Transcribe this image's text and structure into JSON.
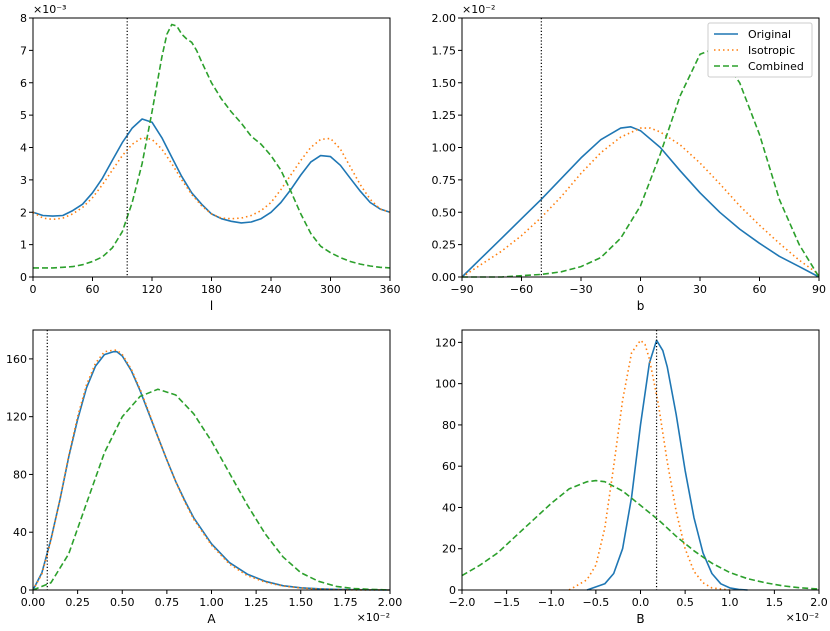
{
  "legend": [
    {
      "label": "Original",
      "color": "#1f77b4",
      "dash": "solid"
    },
    {
      "label": "Isotropic",
      "color": "#ff7f0e",
      "dash": "dotted"
    },
    {
      "label": "Combined",
      "color": "#2ca02c",
      "dash": "dashed"
    }
  ],
  "chart_data": [
    {
      "type": "line",
      "xlabel": "l",
      "ylabel": "",
      "xlim": [
        0,
        360
      ],
      "ylim": [
        0,
        8
      ],
      "xticks": [
        "0",
        "60",
        "120",
        "180",
        "240",
        "300",
        "360"
      ],
      "yticks": [
        "0",
        "1",
        "2",
        "3",
        "4",
        "5",
        "6",
        "7",
        "8"
      ],
      "y_multiplier": "×10⁻³",
      "x_multiplier": "",
      "vline": 95,
      "legend": false,
      "series": [
        {
          "name": "Original",
          "color": "#1f77b4",
          "dash": "solid",
          "x": [
            0,
            10,
            20,
            30,
            40,
            50,
            60,
            70,
            80,
            90,
            100,
            110,
            120,
            130,
            140,
            150,
            160,
            170,
            180,
            190,
            200,
            210,
            220,
            230,
            240,
            250,
            260,
            270,
            280,
            290,
            300,
            310,
            320,
            330,
            340,
            350,
            360
          ],
          "y": [
            2.0,
            1.9,
            1.88,
            1.9,
            2.05,
            2.25,
            2.6,
            3.05,
            3.6,
            4.15,
            4.6,
            4.88,
            4.78,
            4.3,
            3.7,
            3.1,
            2.6,
            2.25,
            1.95,
            1.8,
            1.72,
            1.67,
            1.7,
            1.8,
            2.0,
            2.3,
            2.7,
            3.15,
            3.55,
            3.75,
            3.72,
            3.45,
            3.05,
            2.65,
            2.3,
            2.1,
            2.0
          ]
        },
        {
          "name": "Isotropic",
          "color": "#ff7f0e",
          "dash": "dotted",
          "x": [
            0,
            10,
            20,
            30,
            40,
            50,
            60,
            70,
            80,
            90,
            100,
            110,
            120,
            130,
            140,
            150,
            160,
            170,
            180,
            190,
            200,
            210,
            220,
            230,
            240,
            250,
            260,
            270,
            280,
            290,
            300,
            310,
            320,
            330,
            340,
            350,
            360
          ],
          "y": [
            2.0,
            1.82,
            1.78,
            1.82,
            1.95,
            2.15,
            2.45,
            2.85,
            3.3,
            3.75,
            4.1,
            4.3,
            4.25,
            3.95,
            3.5,
            3.0,
            2.55,
            2.2,
            1.95,
            1.82,
            1.8,
            1.82,
            1.9,
            2.05,
            2.3,
            2.7,
            3.15,
            3.6,
            4.0,
            4.25,
            4.28,
            3.95,
            3.4,
            2.85,
            2.4,
            2.1,
            2.0
          ]
        },
        {
          "name": "Combined",
          "color": "#2ca02c",
          "dash": "dashed",
          "x": [
            0,
            10,
            20,
            30,
            40,
            50,
            60,
            70,
            80,
            90,
            100,
            110,
            120,
            130,
            135,
            140,
            145,
            150,
            155,
            160,
            165,
            170,
            180,
            190,
            200,
            210,
            220,
            230,
            240,
            250,
            260,
            270,
            280,
            290,
            300,
            310,
            320,
            330,
            340,
            350,
            360
          ],
          "y": [
            0.28,
            0.28,
            0.28,
            0.3,
            0.32,
            0.38,
            0.48,
            0.62,
            0.9,
            1.4,
            2.3,
            3.5,
            5.1,
            6.8,
            7.5,
            7.8,
            7.75,
            7.5,
            7.35,
            7.25,
            7.0,
            6.65,
            6.0,
            5.5,
            5.1,
            4.75,
            4.35,
            4.1,
            3.75,
            3.3,
            2.65,
            1.95,
            1.35,
            0.95,
            0.75,
            0.6,
            0.48,
            0.4,
            0.34,
            0.3,
            0.28
          ]
        }
      ]
    },
    {
      "type": "line",
      "xlabel": "b",
      "ylabel": "",
      "xlim": [
        -90,
        90
      ],
      "ylim": [
        0,
        2.0
      ],
      "xticks": [
        "−90",
        "−60",
        "−30",
        "0",
        "30",
        "60",
        "90"
      ],
      "yticks": [
        "0.00",
        "0.25",
        "0.50",
        "0.75",
        "1.00",
        "1.25",
        "1.50",
        "1.75",
        "2.00"
      ],
      "y_multiplier": "×10⁻²",
      "x_multiplier": "",
      "vline": -50,
      "legend": true,
      "series": [
        {
          "name": "Original",
          "color": "#1f77b4",
          "dash": "solid",
          "x": [
            -90,
            -80,
            -70,
            -60,
            -50,
            -40,
            -30,
            -20,
            -10,
            -5,
            0,
            10,
            20,
            30,
            40,
            50,
            60,
            70,
            80,
            90
          ],
          "y": [
            0.0,
            0.15,
            0.3,
            0.45,
            0.6,
            0.76,
            0.92,
            1.06,
            1.15,
            1.16,
            1.13,
            1.0,
            0.82,
            0.65,
            0.5,
            0.37,
            0.26,
            0.16,
            0.08,
            0.0
          ]
        },
        {
          "name": "Isotropic",
          "color": "#ff7f0e",
          "dash": "dotted",
          "x": [
            -90,
            -80,
            -70,
            -60,
            -50,
            -40,
            -30,
            -20,
            -10,
            0,
            5,
            10,
            20,
            30,
            40,
            50,
            60,
            70,
            80,
            90
          ],
          "y": [
            0.0,
            0.1,
            0.2,
            0.32,
            0.46,
            0.62,
            0.8,
            0.96,
            1.08,
            1.15,
            1.15,
            1.12,
            1.02,
            0.88,
            0.72,
            0.55,
            0.4,
            0.26,
            0.13,
            0.02
          ]
        },
        {
          "name": "Combined",
          "color": "#2ca02c",
          "dash": "dashed",
          "x": [
            -90,
            -70,
            -50,
            -40,
            -30,
            -20,
            -10,
            0,
            10,
            20,
            30,
            35,
            40,
            50,
            60,
            70,
            80,
            90
          ],
          "y": [
            0.0,
            0.0,
            0.02,
            0.04,
            0.08,
            0.15,
            0.3,
            0.55,
            0.95,
            1.4,
            1.72,
            1.75,
            1.72,
            1.5,
            1.1,
            0.6,
            0.25,
            0.0
          ]
        }
      ]
    },
    {
      "type": "line",
      "xlabel": "A",
      "ylabel": "",
      "xlim": [
        0,
        2.0
      ],
      "ylim": [
        0,
        180
      ],
      "xticks": [
        "0.00",
        "0.25",
        "0.50",
        "0.75",
        "1.00",
        "1.25",
        "1.50",
        "1.75",
        "2.00"
      ],
      "yticks": [
        "0",
        "40",
        "80",
        "120",
        "160"
      ],
      "y_multiplier": "",
      "x_multiplier": "×10⁻²",
      "vline": 0.08,
      "legend": false,
      "series": [
        {
          "name": "Original",
          "color": "#1f77b4",
          "dash": "solid",
          "x": [
            0.0,
            0.05,
            0.1,
            0.15,
            0.2,
            0.25,
            0.3,
            0.35,
            0.4,
            0.45,
            0.47,
            0.5,
            0.55,
            0.6,
            0.65,
            0.7,
            0.75,
            0.8,
            0.85,
            0.9,
            1.0,
            1.1,
            1.2,
            1.3,
            1.4,
            1.5,
            1.6,
            1.7,
            1.8,
            2.0
          ],
          "y": [
            0,
            12,
            35,
            62,
            92,
            118,
            140,
            155,
            163,
            165,
            165,
            162,
            152,
            138,
            122,
            106,
            90,
            75,
            62,
            50,
            32,
            19,
            11,
            6,
            3,
            1.5,
            0.8,
            0.4,
            0.2,
            0
          ]
        },
        {
          "name": "Isotropic",
          "color": "#ff7f0e",
          "dash": "dotted",
          "x": [
            0.0,
            0.05,
            0.1,
            0.15,
            0.2,
            0.25,
            0.3,
            0.35,
            0.4,
            0.45,
            0.47,
            0.5,
            0.55,
            0.6,
            0.65,
            0.7,
            0.75,
            0.8,
            0.85,
            0.9,
            1.0,
            1.1,
            1.2,
            1.3,
            1.4,
            1.5,
            1.6,
            1.7,
            1.8,
            2.0
          ],
          "y": [
            0,
            11,
            34,
            62,
            93,
            120,
            142,
            157,
            165,
            166,
            166,
            163,
            153,
            139,
            123,
            106,
            90,
            75,
            61,
            49,
            31,
            18,
            10,
            5.5,
            2.8,
            1.4,
            0.7,
            0.3,
            0.1,
            0
          ]
        },
        {
          "name": "Combined",
          "color": "#2ca02c",
          "dash": "dashed",
          "x": [
            0.0,
            0.1,
            0.2,
            0.3,
            0.4,
            0.5,
            0.6,
            0.7,
            0.8,
            0.9,
            1.0,
            1.1,
            1.2,
            1.3,
            1.4,
            1.5,
            1.6,
            1.7,
            1.8,
            1.9,
            2.0
          ],
          "y": [
            0,
            5,
            25,
            60,
            95,
            120,
            134,
            139,
            135,
            122,
            103,
            81,
            59,
            39,
            23,
            12,
            6,
            2.5,
            1,
            0.4,
            0
          ]
        }
      ]
    },
    {
      "type": "line",
      "xlabel": "B",
      "ylabel": "",
      "xlim": [
        -2.0,
        2.0
      ],
      "ylim": [
        0,
        126
      ],
      "xticks": [
        "−2.0",
        "−1.5",
        "−1.0",
        "−0.5",
        "0.0",
        "0.5",
        "1.0",
        "1.5",
        "2.0"
      ],
      "yticks": [
        "0",
        "20",
        "40",
        "60",
        "80",
        "100",
        "120"
      ],
      "y_multiplier": "",
      "x_multiplier": "×10⁻²",
      "vline": 0.18,
      "legend": false,
      "series": [
        {
          "name": "Original",
          "color": "#1f77b4",
          "dash": "solid",
          "x": [
            -0.6,
            -0.4,
            -0.3,
            -0.2,
            -0.1,
            0.0,
            0.1,
            0.18,
            0.25,
            0.3,
            0.4,
            0.5,
            0.6,
            0.7,
            0.8,
            0.9,
            1.0,
            1.1,
            1.2
          ],
          "y": [
            0,
            3,
            8,
            20,
            45,
            80,
            110,
            121,
            116,
            108,
            85,
            58,
            35,
            18,
            8,
            3,
            1,
            0.3,
            0
          ]
        },
        {
          "name": "Isotropic",
          "color": "#ff7f0e",
          "dash": "dotted",
          "x": [
            -0.8,
            -0.6,
            -0.5,
            -0.4,
            -0.3,
            -0.2,
            -0.1,
            0.0,
            0.05,
            0.1,
            0.2,
            0.3,
            0.4,
            0.5,
            0.6,
            0.7,
            0.8,
            1.0
          ],
          "y": [
            0,
            5,
            12,
            30,
            60,
            92,
            115,
            121,
            119,
            112,
            90,
            62,
            38,
            20,
            9,
            3.5,
            1,
            0
          ]
        },
        {
          "name": "Combined",
          "color": "#2ca02c",
          "dash": "dashed",
          "x": [
            -2.0,
            -1.8,
            -1.6,
            -1.4,
            -1.2,
            -1.0,
            -0.8,
            -0.6,
            -0.5,
            -0.4,
            -0.2,
            0.0,
            0.2,
            0.4,
            0.6,
            0.8,
            1.0,
            1.2,
            1.4,
            1.6,
            1.8,
            2.0
          ],
          "y": [
            7,
            12,
            18,
            26,
            34,
            42,
            49,
            52.5,
            53,
            52.5,
            48,
            41,
            34,
            26,
            19,
            13,
            8.5,
            5.5,
            3.5,
            2,
            1,
            0.5
          ]
        }
      ]
    }
  ]
}
